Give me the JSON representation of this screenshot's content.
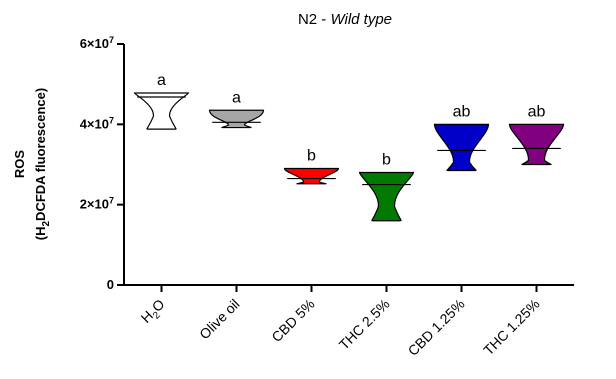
{
  "chart_data": {
    "type": "violin",
    "title_prefix": "N2 - ",
    "title_italic": "Wild type",
    "ylabel_line1": "ROS",
    "ylabel_line2_pre": "(H",
    "ylabel_line2_sub": "2",
    "ylabel_line2_post": "DCFDA fluorescence)",
    "ylim": [
      0,
      60000000
    ],
    "yticks": [
      {
        "value": 0,
        "base": "0",
        "exp": ""
      },
      {
        "value": 20000000,
        "base": "2×10",
        "exp": "7"
      },
      {
        "value": 40000000,
        "base": "4×10",
        "exp": "7"
      },
      {
        "value": 60000000,
        "base": "6×10",
        "exp": "7"
      }
    ],
    "categories": [
      {
        "label_pre": "H",
        "label_sub": "2",
        "label_post": "O",
        "min": 38800000,
        "max": 47800000,
        "median": 46800000,
        "q1": 42000000,
        "q3": 47500000,
        "color": "#ffffff",
        "sig": "a"
      },
      {
        "label_pre": "Olive oil",
        "label_sub": "",
        "label_post": "",
        "min": 39200000,
        "max": 43500000,
        "median": 40500000,
        "q1": 39800000,
        "q3": 41500000,
        "color": "#a6a6a6",
        "sig": "a"
      },
      {
        "label_pre": "CBD 5%",
        "label_sub": "",
        "label_post": "",
        "min": 25200000,
        "max": 29000000,
        "median": 26500000,
        "q1": 25600000,
        "q3": 28000000,
        "color": "#ff0000",
        "sig": "b"
      },
      {
        "label_pre": "THC 2.5%",
        "label_sub": "",
        "label_post": "",
        "min": 16000000,
        "max": 28000000,
        "median": 25000000,
        "q1": 19500000,
        "q3": 27000000,
        "color": "#007a00",
        "sig": "b"
      },
      {
        "label_pre": "CBD 1.25%",
        "label_sub": "",
        "label_post": "",
        "min": 28500000,
        "max": 40000000,
        "median": 33500000,
        "q1": 30500000,
        "q3": 37500000,
        "color": "#0000c8",
        "sig": "ab"
      },
      {
        "label_pre": "THC 1.25%",
        "label_sub": "",
        "label_post": "",
        "min": 30000000,
        "max": 40000000,
        "median": 34000000,
        "q1": 31000000,
        "q3": 38000000,
        "color": "#800080",
        "sig": "ab"
      }
    ],
    "grid": false,
    "legend": "none"
  }
}
